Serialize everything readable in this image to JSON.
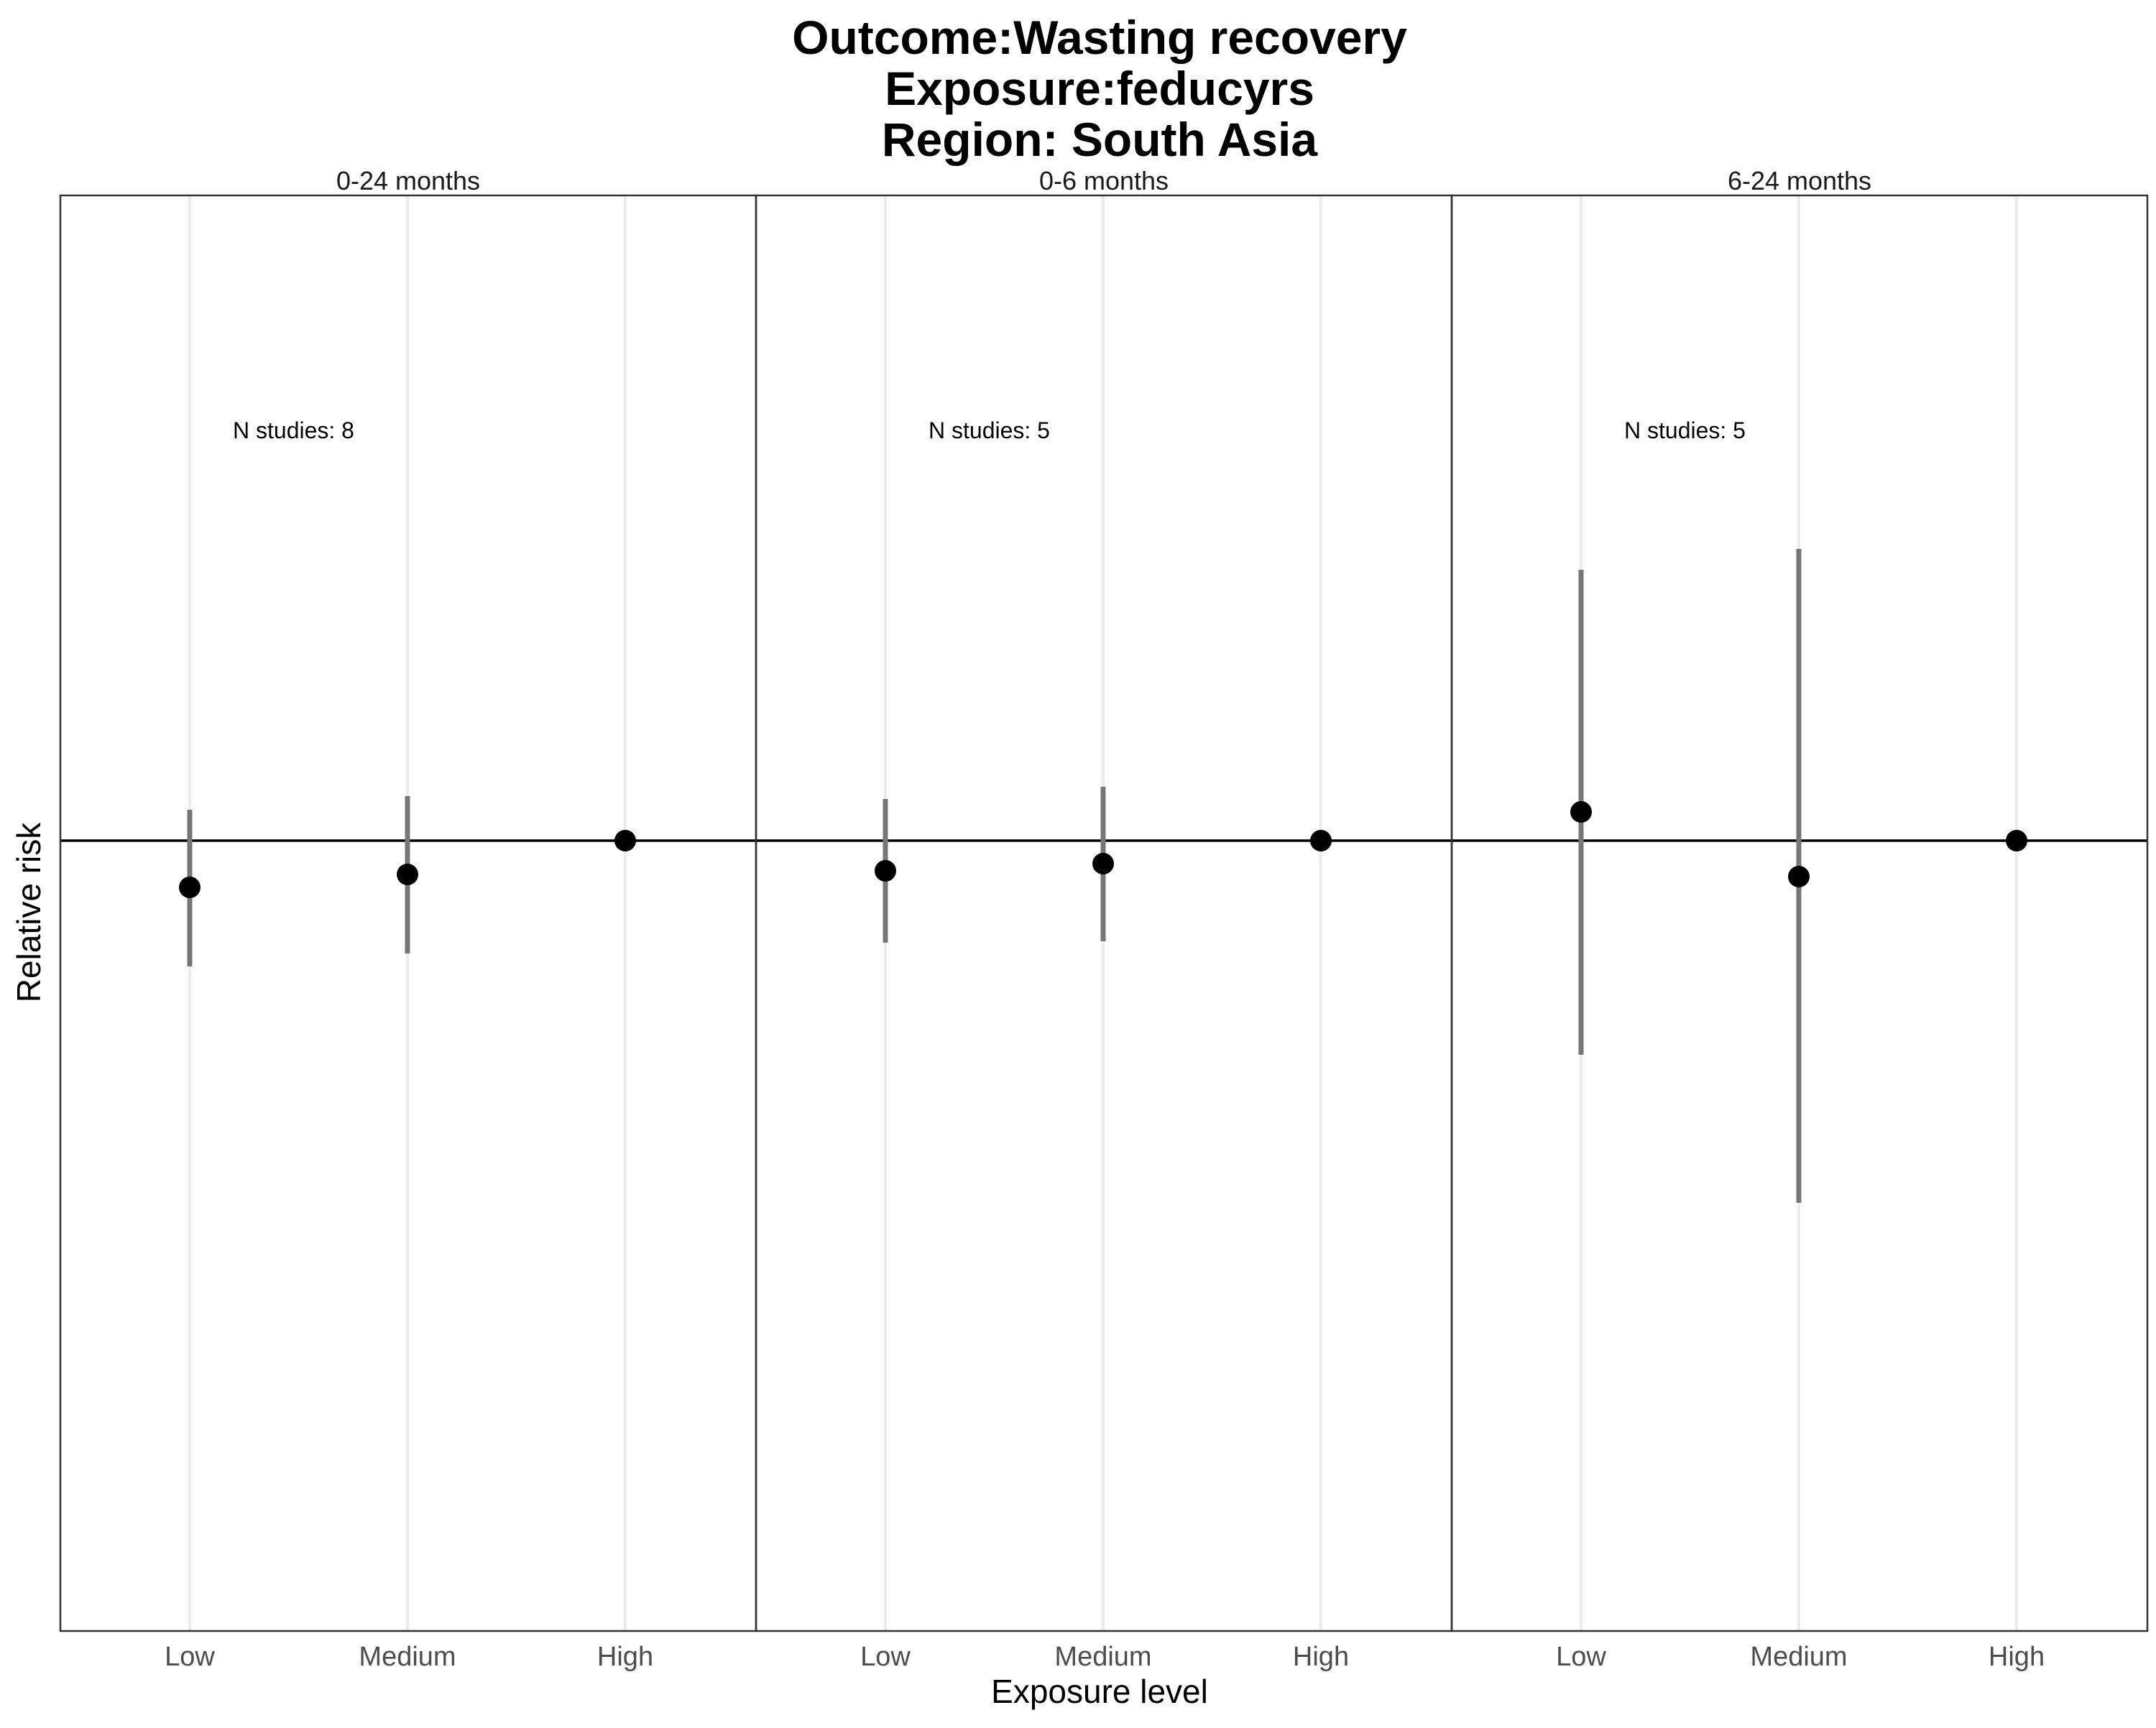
{
  "chart_data": {
    "type": "scatter",
    "title": [
      "Outcome:Wasting recovery",
      "Exposure:feducyrs",
      "Region: South Asia"
    ],
    "xlabel": "Exposure level",
    "ylabel": "Relative risk",
    "categories": [
      "Low",
      "Medium",
      "High"
    ],
    "reference_value": 1.0,
    "ylim": [
      0.5,
      1.5
    ],
    "grid": true,
    "legend": "none",
    "panels": [
      {
        "label": "0-24 months",
        "annotation": "N studies: 8",
        "points": [
          {
            "category": "Low",
            "estimate": 0.935,
            "lower": 0.825,
            "upper": 1.043
          },
          {
            "category": "Medium",
            "estimate": 0.953,
            "lower": 0.843,
            "upper": 1.062
          },
          {
            "category": "High",
            "estimate": 1.0,
            "lower": null,
            "upper": null
          }
        ]
      },
      {
        "label": "0-6 months",
        "annotation": "N studies: 5",
        "points": [
          {
            "category": "Low",
            "estimate": 0.958,
            "lower": 0.858,
            "upper": 1.058
          },
          {
            "category": "Medium",
            "estimate": 0.968,
            "lower": 0.86,
            "upper": 1.075
          },
          {
            "category": "High",
            "estimate": 1.0,
            "lower": null,
            "upper": null
          }
        ]
      },
      {
        "label": "6-24 months",
        "annotation": "N studies: 5",
        "points": [
          {
            "category": "Low",
            "estimate": 1.04,
            "lower": 0.702,
            "upper": 1.377
          },
          {
            "category": "Medium",
            "estimate": 0.95,
            "lower": 0.496,
            "upper": 1.406
          },
          {
            "category": "High",
            "estimate": 1.0,
            "lower": null,
            "upper": null
          }
        ]
      }
    ]
  }
}
